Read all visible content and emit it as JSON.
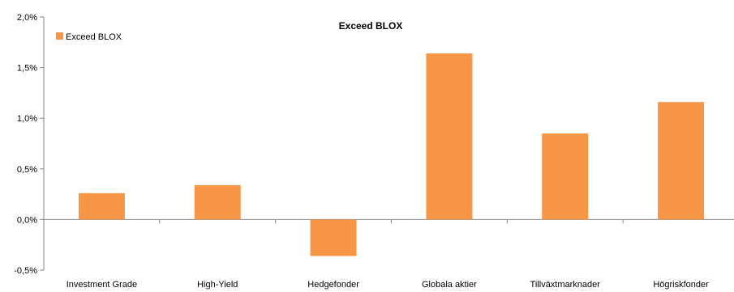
{
  "chart_data": {
    "type": "bar",
    "title": "Exceed BLOX",
    "categories": [
      "Investment Grade",
      "High-Yield",
      "Hedgefonder",
      "Globala aktier",
      "Tillväxtmarknader",
      "Högriskfonder"
    ],
    "series": [
      {
        "name": "Exceed BLOX",
        "values": [
          0.26,
          0.34,
          -0.36,
          1.64,
          0.85,
          1.16
        ],
        "color": "#F79646"
      }
    ],
    "ylim": [
      -0.5,
      2.0
    ],
    "yticks": [
      -0.5,
      0.0,
      0.5,
      1.0,
      1.5,
      2.0
    ],
    "ytick_labels": [
      "-0,5%",
      "0,0%",
      "0,5%",
      "1,0%",
      "1,5%",
      "2,0%"
    ],
    "grid": false,
    "legend": "top-left",
    "xlabel": "",
    "ylabel": ""
  }
}
